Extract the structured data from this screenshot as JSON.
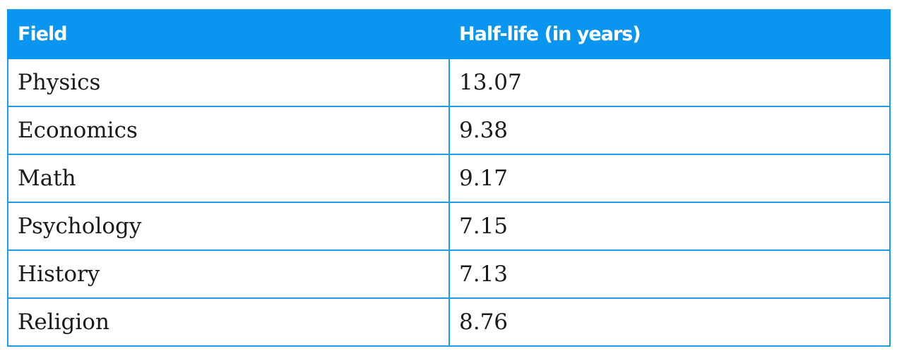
{
  "table": {
    "headers": [
      "Field",
      "Half-life (in years)"
    ],
    "rows": [
      [
        "Physics",
        "13.07"
      ],
      [
        "Economics",
        "9.38"
      ],
      [
        "Math",
        "9.17"
      ],
      [
        "Psychology",
        "7.15"
      ],
      [
        "History",
        "7.13"
      ],
      [
        "Religion",
        "8.76"
      ]
    ]
  },
  "colors": {
    "header_bg": "#0a96f0",
    "border": "#1e9cf0",
    "header_text": "#ffffff"
  }
}
